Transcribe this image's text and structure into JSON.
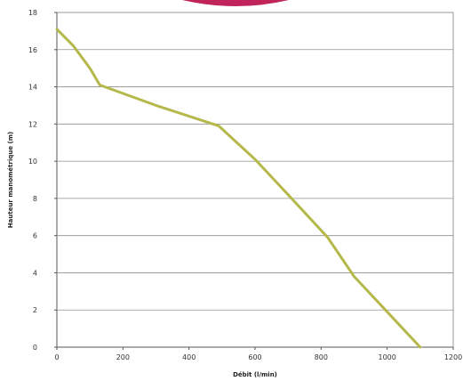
{
  "chart_data": {
    "type": "line",
    "title": "",
    "xlabel": "Débit (l/min)",
    "ylabel": "Hauteur manométrique (m)",
    "xlim": [
      0,
      1200
    ],
    "ylim": [
      0,
      18
    ],
    "grid": true,
    "legend": "none",
    "x_ticks": [
      0,
      200,
      400,
      600,
      800,
      1000,
      1200
    ],
    "x_tick_labels": [
      "0",
      "200",
      "400",
      "600",
      "800",
      "1000",
      "1200"
    ],
    "y_ticks": [
      0,
      2,
      4,
      6,
      8,
      10,
      12,
      14,
      16,
      18
    ],
    "y_tick_labels": [
      "0",
      "2",
      "4",
      "6",
      "8",
      "10",
      "12",
      "14",
      "16",
      "18"
    ],
    "series": [
      {
        "color": "#b5b84a",
        "x": [
          0,
          50,
          100,
          130,
          300,
          490,
          600,
          700,
          820,
          900,
          1000,
          1100
        ],
        "y": [
          17.1,
          16.2,
          15.0,
          14.1,
          13.0,
          11.9,
          10.1,
          8.2,
          5.9,
          3.8,
          1.9,
          0
        ]
      }
    ]
  },
  "decor": {
    "top_arc_color": "#c0245a"
  }
}
